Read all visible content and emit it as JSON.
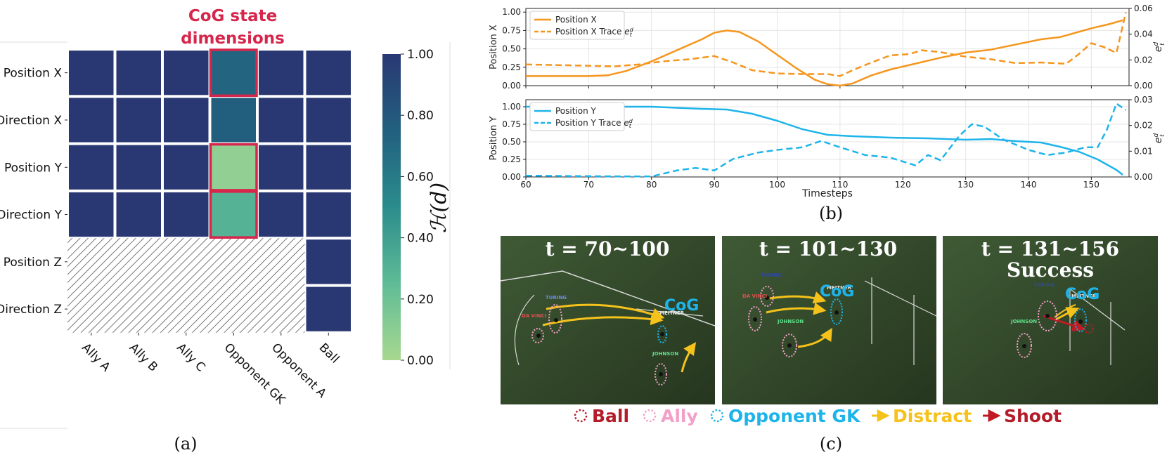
{
  "chart_data": [
    {
      "id": "a",
      "type": "heatmap",
      "title": "CoG state dimensions",
      "rows": [
        "Position X",
        "Direction X",
        "Position Y",
        "Direction Y",
        "Position Z",
        "Direction Z"
      ],
      "cols": [
        "Ally A",
        "Ally B",
        "Ally C",
        "Opponent GK",
        "Opponent A",
        "Ball"
      ],
      "values": [
        [
          1.0,
          1.0,
          1.0,
          0.73,
          1.0,
          1.0
        ],
        [
          1.0,
          1.0,
          1.0,
          0.76,
          1.0,
          1.0
        ],
        [
          1.0,
          1.0,
          1.0,
          0.08,
          1.0,
          1.0
        ],
        [
          1.0,
          1.0,
          1.0,
          0.3,
          1.0,
          1.0
        ],
        [
          null,
          null,
          null,
          null,
          null,
          1.0
        ],
        [
          null,
          null,
          null,
          null,
          null,
          1.0
        ]
      ],
      "highlight": [
        [
          0,
          3
        ],
        [
          2,
          3
        ],
        [
          3,
          3
        ]
      ],
      "colorbar": {
        "label": "ℋ(d)",
        "ticks": [
          "1.00",
          "0.80",
          "0.60",
          "0.40",
          "0.20",
          "0.00"
        ],
        "min": 0,
        "max": 1
      },
      "caption": "(a)"
    },
    {
      "id": "b_top",
      "type": "line",
      "ylabel": "Position X",
      "y2label": "e",
      "y2sup": "d",
      "y2sub": "t",
      "xlim": [
        60,
        156
      ],
      "ylim": [
        0,
        1.05
      ],
      "y2lim": [
        0,
        0.06
      ],
      "xticks": [
        "60",
        "70",
        "80",
        "90",
        "100",
        "110",
        "120",
        "130",
        "140",
        "150"
      ],
      "yticks": [
        "0.00",
        "0.25",
        "0.50",
        "0.75",
        "1.00"
      ],
      "y2ticks": [
        "0.00",
        "0.02",
        "0.04",
        "0.06"
      ],
      "series": [
        {
          "name": "Position X",
          "axis": "left",
          "style": "solid",
          "color": "#f5961e",
          "x": [
            60,
            65,
            70,
            73,
            76,
            80,
            84,
            88,
            90,
            92,
            94,
            97,
            100,
            103,
            106,
            108,
            110,
            112,
            115,
            118,
            122,
            126,
            130,
            134,
            138,
            142,
            145,
            150,
            153,
            155
          ],
          "y": [
            0.13,
            0.13,
            0.13,
            0.14,
            0.2,
            0.33,
            0.48,
            0.63,
            0.72,
            0.75,
            0.73,
            0.6,
            0.42,
            0.24,
            0.08,
            0.02,
            0.0,
            0.03,
            0.14,
            0.22,
            0.3,
            0.38,
            0.45,
            0.49,
            0.56,
            0.63,
            0.66,
            0.78,
            0.84,
            0.89
          ]
        },
        {
          "name": "Position X Trace",
          "axis": "right",
          "style": "dashed",
          "color": "#f5961e",
          "x": [
            60,
            65,
            70,
            74,
            78,
            82,
            86,
            90,
            93,
            96,
            100,
            104,
            108,
            110,
            112,
            115,
            118,
            121,
            123,
            126,
            130,
            134,
            138,
            142,
            146,
            148,
            150,
            152,
            154,
            155.5
          ],
          "y": [
            0.0165,
            0.016,
            0.0155,
            0.015,
            0.0165,
            0.019,
            0.0205,
            0.023,
            0.018,
            0.012,
            0.0095,
            0.009,
            0.009,
            0.0075,
            0.012,
            0.018,
            0.0235,
            0.0245,
            0.0275,
            0.026,
            0.0225,
            0.0205,
            0.0175,
            0.018,
            0.017,
            0.0245,
            0.033,
            0.03,
            0.0255,
            0.057
          ]
        }
      ]
    },
    {
      "id": "b_bottom",
      "type": "line",
      "ylabel": "Position Y",
      "y2label": "e",
      "y2sup": "d",
      "y2sub": "t",
      "xlabel": "Timesteps",
      "xlim": [
        60,
        156
      ],
      "ylim": [
        0,
        1.1
      ],
      "y2lim": [
        0,
        0.03
      ],
      "xticks": [
        "60",
        "70",
        "80",
        "90",
        "100",
        "110",
        "120",
        "130",
        "140",
        "150"
      ],
      "yticks": [
        "0.00",
        "0.25",
        "0.50",
        "0.75",
        "1.00"
      ],
      "y2ticks": [
        "0.00",
        "0.01",
        "0.02",
        "0.03"
      ],
      "series": [
        {
          "name": "Position Y",
          "axis": "left",
          "style": "solid",
          "color": "#1eb4ea",
          "x": [
            60,
            70,
            80,
            88,
            92,
            96,
            100,
            104,
            108,
            112,
            118,
            124,
            130,
            134,
            138,
            142,
            145,
            148,
            151,
            154,
            155
          ],
          "y": [
            1.0,
            1.0,
            1.0,
            0.97,
            0.96,
            0.9,
            0.8,
            0.68,
            0.6,
            0.58,
            0.56,
            0.55,
            0.53,
            0.54,
            0.51,
            0.49,
            0.43,
            0.36,
            0.25,
            0.1,
            0.03
          ]
        },
        {
          "name": "Position Y Trace",
          "axis": "right",
          "style": "dashed",
          "color": "#1eb4ea",
          "x": [
            60,
            70,
            76,
            80,
            84,
            87,
            90,
            93,
            97,
            100,
            104,
            107,
            110,
            114,
            118,
            122,
            124,
            126,
            129,
            131,
            133,
            136,
            140,
            143,
            146,
            149,
            151,
            152.5,
            154,
            155.5
          ],
          "y": [
            0.0005,
            0.0003,
            0.0002,
            0.0002,
            0.0025,
            0.0035,
            0.0025,
            0.007,
            0.0095,
            0.0105,
            0.0115,
            0.014,
            0.0115,
            0.0085,
            0.0075,
            0.0045,
            0.0085,
            0.0065,
            0.016,
            0.0205,
            0.0195,
            0.0145,
            0.0105,
            0.0085,
            0.0095,
            0.0115,
            0.0115,
            0.0185,
            0.0285,
            0.026
          ]
        }
      ],
      "caption": "(b)"
    }
  ],
  "panel_c": {
    "panels": [
      {
        "title": "t = 70~100",
        "cog_label": "CoG",
        "players": [
          "TURING",
          "DA VINCI",
          "MEITNER",
          "JOHNSON"
        ]
      },
      {
        "title": "t = 101~130",
        "cog_label": "CoG",
        "players": [
          "TURING",
          "DA VINCI",
          "MEITNER",
          "JOHNSON"
        ]
      },
      {
        "title": "t = 131~156",
        "subtitle": "Success",
        "cog_label": "CoG",
        "players": [
          "TURING",
          "MEITNER",
          "JOHNSON"
        ]
      }
    ],
    "legend": [
      {
        "label": "Ball",
        "color": "#b51c2a",
        "marker": "dotted-circle"
      },
      {
        "label": "Ally",
        "color": "#f2a0c8",
        "marker": "dotted-circle"
      },
      {
        "label": "Opponent GK",
        "color": "#1eb4ea",
        "marker": "dotted-circle"
      },
      {
        "label": "Distract",
        "color": "#f5c21c",
        "marker": "arrow"
      },
      {
        "label": "Shoot",
        "color": "#b51c2a",
        "marker": "arrow"
      }
    ],
    "caption": "(c)"
  }
}
